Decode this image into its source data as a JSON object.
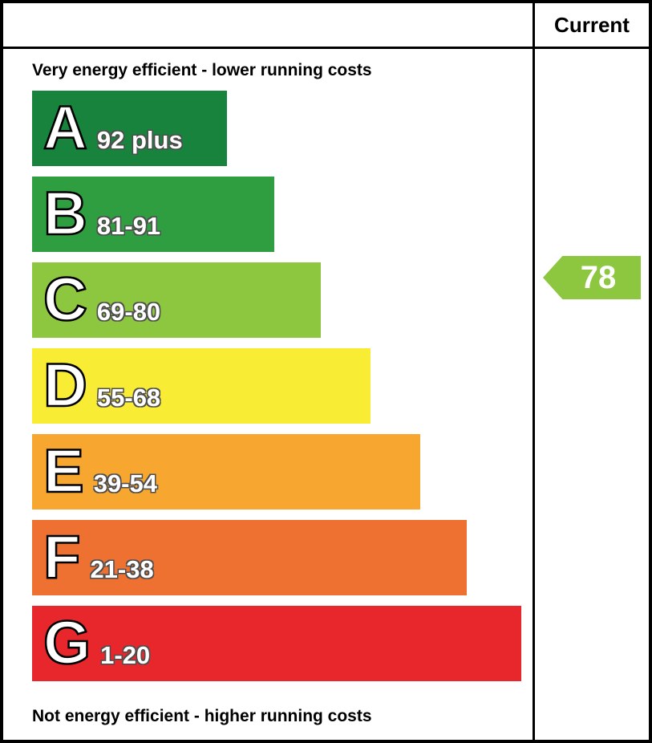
{
  "header": {
    "current_label": "Current"
  },
  "captions": {
    "top": "Very energy efficient - lower running costs",
    "bottom": "Not energy efficient - higher running costs"
  },
  "bands": [
    {
      "letter": "A",
      "range": "92 plus",
      "color": "#17833c",
      "width_pct": 39.5
    },
    {
      "letter": "B",
      "range": "81-91",
      "color": "#2f9e41",
      "width_pct": 49
    },
    {
      "letter": "C",
      "range": "69-80",
      "color": "#8dc63f",
      "width_pct": 58.5
    },
    {
      "letter": "D",
      "range": "55-68",
      "color": "#f9ec35",
      "width_pct": 68.5
    },
    {
      "letter": "E",
      "range": "39-54",
      "color": "#f7a730",
      "width_pct": 78.5
    },
    {
      "letter": "F",
      "range": "21-38",
      "color": "#ee7132",
      "width_pct": 88
    },
    {
      "letter": "G",
      "range": "1-20",
      "color": "#e8272c",
      "width_pct": 99
    }
  ],
  "current": {
    "value": "78",
    "band": "C",
    "color": "#8dc63f"
  },
  "chart_data": {
    "type": "bar",
    "orientation": "horizontal",
    "categories": [
      "A",
      "B",
      "C",
      "D",
      "E",
      "F",
      "G"
    ],
    "labels": [
      "92 plus",
      "81-91",
      "69-80",
      "55-68",
      "39-54",
      "21-38",
      "1-20"
    ],
    "ranges": [
      [
        92,
        100
      ],
      [
        81,
        91
      ],
      [
        69,
        80
      ],
      [
        55,
        68
      ],
      [
        39,
        54
      ],
      [
        21,
        38
      ],
      [
        1,
        20
      ]
    ],
    "bar_width_pct": [
      39.5,
      49,
      58.5,
      68.5,
      78.5,
      88,
      99
    ],
    "colors": [
      "#17833c",
      "#2f9e41",
      "#8dc63f",
      "#f9ec35",
      "#f7a730",
      "#ee7132",
      "#e8272c"
    ],
    "annotations": [
      "Very energy efficient - lower running costs",
      "Not energy efficient - higher running costs"
    ],
    "current_rating": {
      "value": 78,
      "band": "C"
    },
    "column_header": "Current",
    "grid": false,
    "legend": false
  }
}
